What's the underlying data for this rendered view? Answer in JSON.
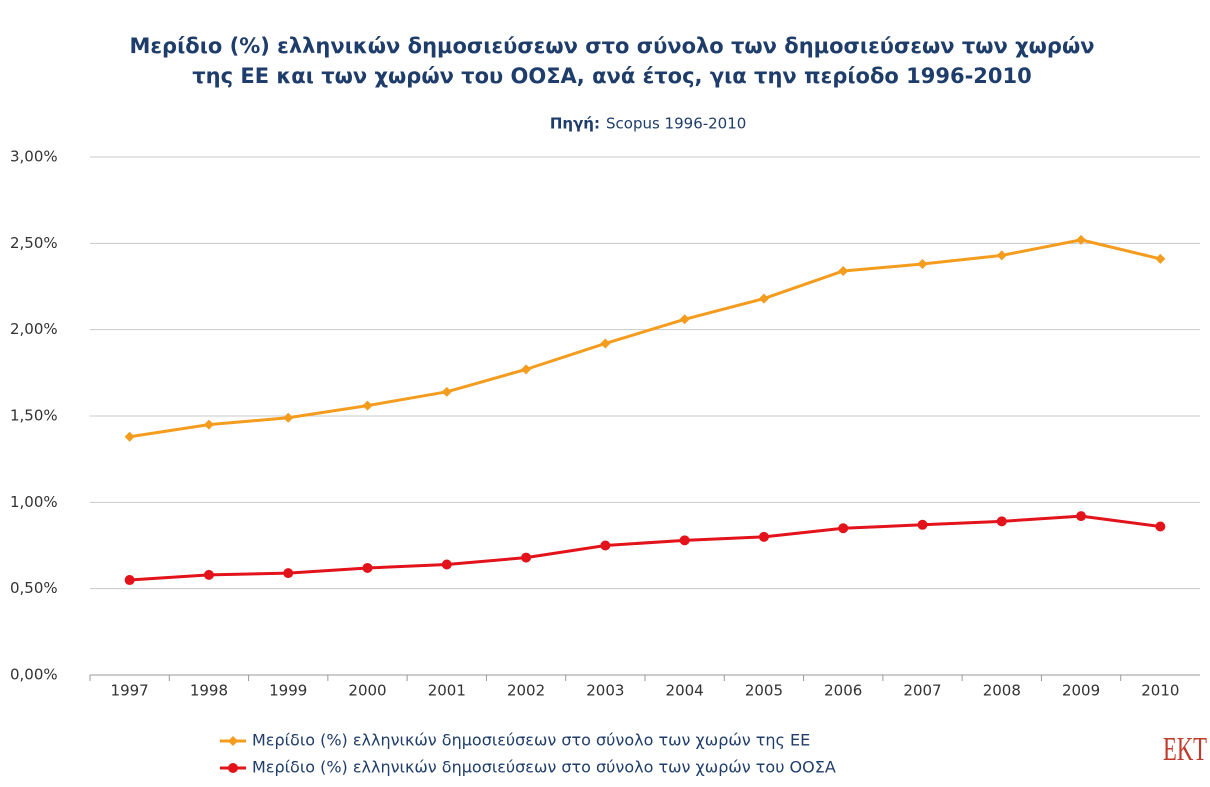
{
  "chart_data": {
    "type": "line",
    "title": [
      "Μερίδιο (%) ελληνικών δημοσιεύσεων στο σύνολο των δημοσιεύσεων των χωρών",
      "της ΕΕ και των χωρών του ΟΟΣΑ, ανά έτος, για την περίοδο 1996-2010"
    ],
    "source_label": "Πηγή:",
    "source": "Scopus 1996-2010",
    "categories": [
      "1997",
      "1998",
      "1999",
      "2000",
      "2001",
      "2002",
      "2003",
      "2004",
      "2005",
      "2006",
      "2007",
      "2008",
      "2009",
      "2010"
    ],
    "series": [
      {
        "name": "Μερίδιο (%) ελληνικών δημοσιεύσεων στο σύνολο των χωρών της ΕΕ",
        "color": "#f39c1e",
        "marker": "diamond",
        "values": [
          1.38,
          1.45,
          1.49,
          1.56,
          1.64,
          1.77,
          1.92,
          2.06,
          2.18,
          2.34,
          2.38,
          2.43,
          2.52,
          2.41
        ]
      },
      {
        "name": "Μερίδιο (%) ελληνικών δημοσιεύσεων στο σύνολο των χωρών του ΟΟΣΑ",
        "color": "#e3131b",
        "marker": "circle",
        "values": [
          0.55,
          0.58,
          0.59,
          0.62,
          0.64,
          0.68,
          0.75,
          0.78,
          0.8,
          0.85,
          0.87,
          0.89,
          0.92,
          0.86
        ]
      }
    ],
    "ylim": [
      0,
      3
    ],
    "yticks": [
      {
        "value": 0,
        "label": "0,00%"
      },
      {
        "value": 0.5,
        "label": "0,50%"
      },
      {
        "value": 1,
        "label": "1,00%"
      },
      {
        "value": 1.5,
        "label": "1,50%"
      },
      {
        "value": 2,
        "label": "2,00%"
      },
      {
        "value": 2.5,
        "label": "2,50%"
      },
      {
        "value": 3,
        "label": "3,00%"
      }
    ],
    "grid": true,
    "legend": "bottom",
    "logo": "EKT"
  }
}
